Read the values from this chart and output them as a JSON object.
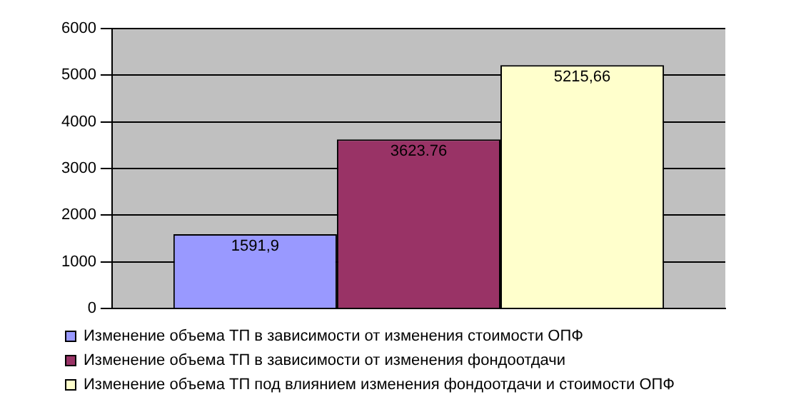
{
  "chart_data": {
    "type": "bar",
    "categories": [
      null
    ],
    "series": [
      {
        "name": "Изменение объема ТП в зависимости от изменения стоимости ОПФ",
        "color": "#9999ff",
        "values": [
          1591.9
        ],
        "value_labels": [
          "1591,9"
        ]
      },
      {
        "name": "Изменение объема ТП в зависимости от изменения фондоотдачи",
        "color": "#993366",
        "values": [
          3623.76
        ],
        "value_labels": [
          "3623.76"
        ]
      },
      {
        "name": "Изменение объема ТП под влиянием изменения фондоотдачи и стоимости ОПФ",
        "color": "#ffffcc",
        "values": [
          5215.66
        ],
        "value_labels": [
          "5215,66"
        ]
      }
    ],
    "ylim": [
      0,
      6000
    ],
    "yticks": [
      0,
      1000,
      2000,
      3000,
      4000,
      5000,
      6000
    ],
    "grid": "y",
    "legend": "bottom"
  }
}
